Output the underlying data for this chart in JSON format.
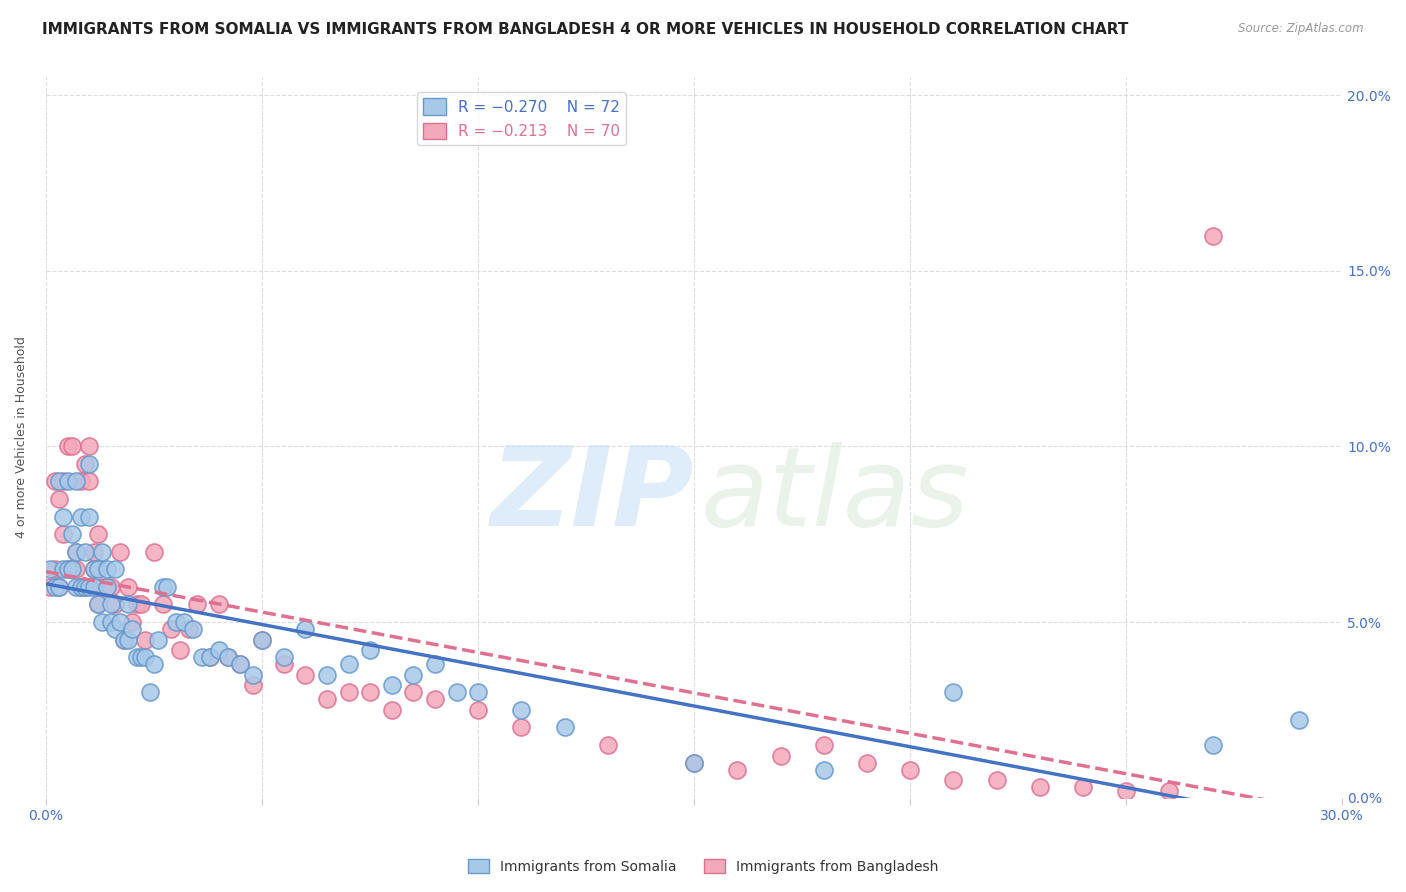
{
  "title": "IMMIGRANTS FROM SOMALIA VS IMMIGRANTS FROM BANGLADESH 4 OR MORE VEHICLES IN HOUSEHOLD CORRELATION CHART",
  "source": "Source: ZipAtlas.com",
  "ylabel": "4 or more Vehicles in Household",
  "xlim": [
    0.0,
    0.3
  ],
  "ylim": [
    0.0,
    0.205
  ],
  "somalia_color": "#a8c8e8",
  "somalia_edge": "#6699cc",
  "bangladesh_color": "#f4a8bb",
  "bangladesh_edge": "#dd7090",
  "somalia_line_color": "#4472c4",
  "bangladesh_line_color": "#e07090",
  "legend_R_somalia": "R = −0.270",
  "legend_N_somalia": "N = 72",
  "legend_R_bangladesh": "R = −0.213",
  "legend_N_bangladesh": "N = 70",
  "somalia_x": [
    0.001,
    0.002,
    0.003,
    0.003,
    0.004,
    0.004,
    0.005,
    0.005,
    0.006,
    0.006,
    0.007,
    0.007,
    0.007,
    0.008,
    0.008,
    0.009,
    0.009,
    0.01,
    0.01,
    0.01,
    0.011,
    0.011,
    0.012,
    0.012,
    0.013,
    0.013,
    0.014,
    0.014,
    0.015,
    0.015,
    0.016,
    0.016,
    0.017,
    0.018,
    0.019,
    0.019,
    0.02,
    0.021,
    0.022,
    0.023,
    0.024,
    0.025,
    0.026,
    0.027,
    0.028,
    0.03,
    0.032,
    0.034,
    0.036,
    0.038,
    0.04,
    0.042,
    0.045,
    0.048,
    0.05,
    0.055,
    0.06,
    0.065,
    0.07,
    0.075,
    0.08,
    0.085,
    0.09,
    0.095,
    0.1,
    0.11,
    0.12,
    0.15,
    0.18,
    0.21,
    0.27,
    0.29
  ],
  "somalia_y": [
    0.065,
    0.06,
    0.09,
    0.06,
    0.065,
    0.08,
    0.065,
    0.09,
    0.065,
    0.075,
    0.06,
    0.09,
    0.07,
    0.06,
    0.08,
    0.06,
    0.07,
    0.095,
    0.06,
    0.08,
    0.06,
    0.065,
    0.055,
    0.065,
    0.05,
    0.07,
    0.06,
    0.065,
    0.05,
    0.055,
    0.048,
    0.065,
    0.05,
    0.045,
    0.045,
    0.055,
    0.048,
    0.04,
    0.04,
    0.04,
    0.03,
    0.038,
    0.045,
    0.06,
    0.06,
    0.05,
    0.05,
    0.048,
    0.04,
    0.04,
    0.042,
    0.04,
    0.038,
    0.035,
    0.045,
    0.04,
    0.048,
    0.035,
    0.038,
    0.042,
    0.032,
    0.035,
    0.038,
    0.03,
    0.03,
    0.025,
    0.02,
    0.01,
    0.008,
    0.03,
    0.015,
    0.022
  ],
  "bangladesh_x": [
    0.001,
    0.002,
    0.002,
    0.003,
    0.003,
    0.004,
    0.004,
    0.005,
    0.005,
    0.006,
    0.006,
    0.007,
    0.007,
    0.008,
    0.008,
    0.009,
    0.009,
    0.01,
    0.01,
    0.011,
    0.011,
    0.012,
    0.012,
    0.013,
    0.014,
    0.015,
    0.016,
    0.017,
    0.018,
    0.019,
    0.02,
    0.021,
    0.022,
    0.023,
    0.025,
    0.027,
    0.029,
    0.031,
    0.033,
    0.035,
    0.038,
    0.04,
    0.042,
    0.045,
    0.048,
    0.05,
    0.055,
    0.06,
    0.065,
    0.07,
    0.075,
    0.08,
    0.085,
    0.09,
    0.1,
    0.11,
    0.13,
    0.15,
    0.16,
    0.17,
    0.18,
    0.19,
    0.2,
    0.21,
    0.22,
    0.23,
    0.24,
    0.25,
    0.26,
    0.27
  ],
  "bangladesh_y": [
    0.06,
    0.065,
    0.09,
    0.06,
    0.085,
    0.075,
    0.09,
    0.065,
    0.1,
    0.065,
    0.1,
    0.07,
    0.065,
    0.06,
    0.09,
    0.095,
    0.06,
    0.09,
    0.1,
    0.065,
    0.07,
    0.075,
    0.055,
    0.06,
    0.06,
    0.06,
    0.055,
    0.07,
    0.045,
    0.06,
    0.05,
    0.055,
    0.055,
    0.045,
    0.07,
    0.055,
    0.048,
    0.042,
    0.048,
    0.055,
    0.04,
    0.055,
    0.04,
    0.038,
    0.032,
    0.045,
    0.038,
    0.035,
    0.028,
    0.03,
    0.03,
    0.025,
    0.03,
    0.028,
    0.025,
    0.02,
    0.015,
    0.01,
    0.008,
    0.012,
    0.015,
    0.01,
    0.008,
    0.005,
    0.005,
    0.003,
    0.003,
    0.002,
    0.002,
    0.16
  ],
  "watermark_zip": "ZIP",
  "watermark_atlas": "atlas",
  "background_color": "#ffffff",
  "grid_color": "#dddddd",
  "blue_color": "#4472c4",
  "title_fontsize": 11,
  "axis_label_fontsize": 9,
  "tick_fontsize": 10
}
